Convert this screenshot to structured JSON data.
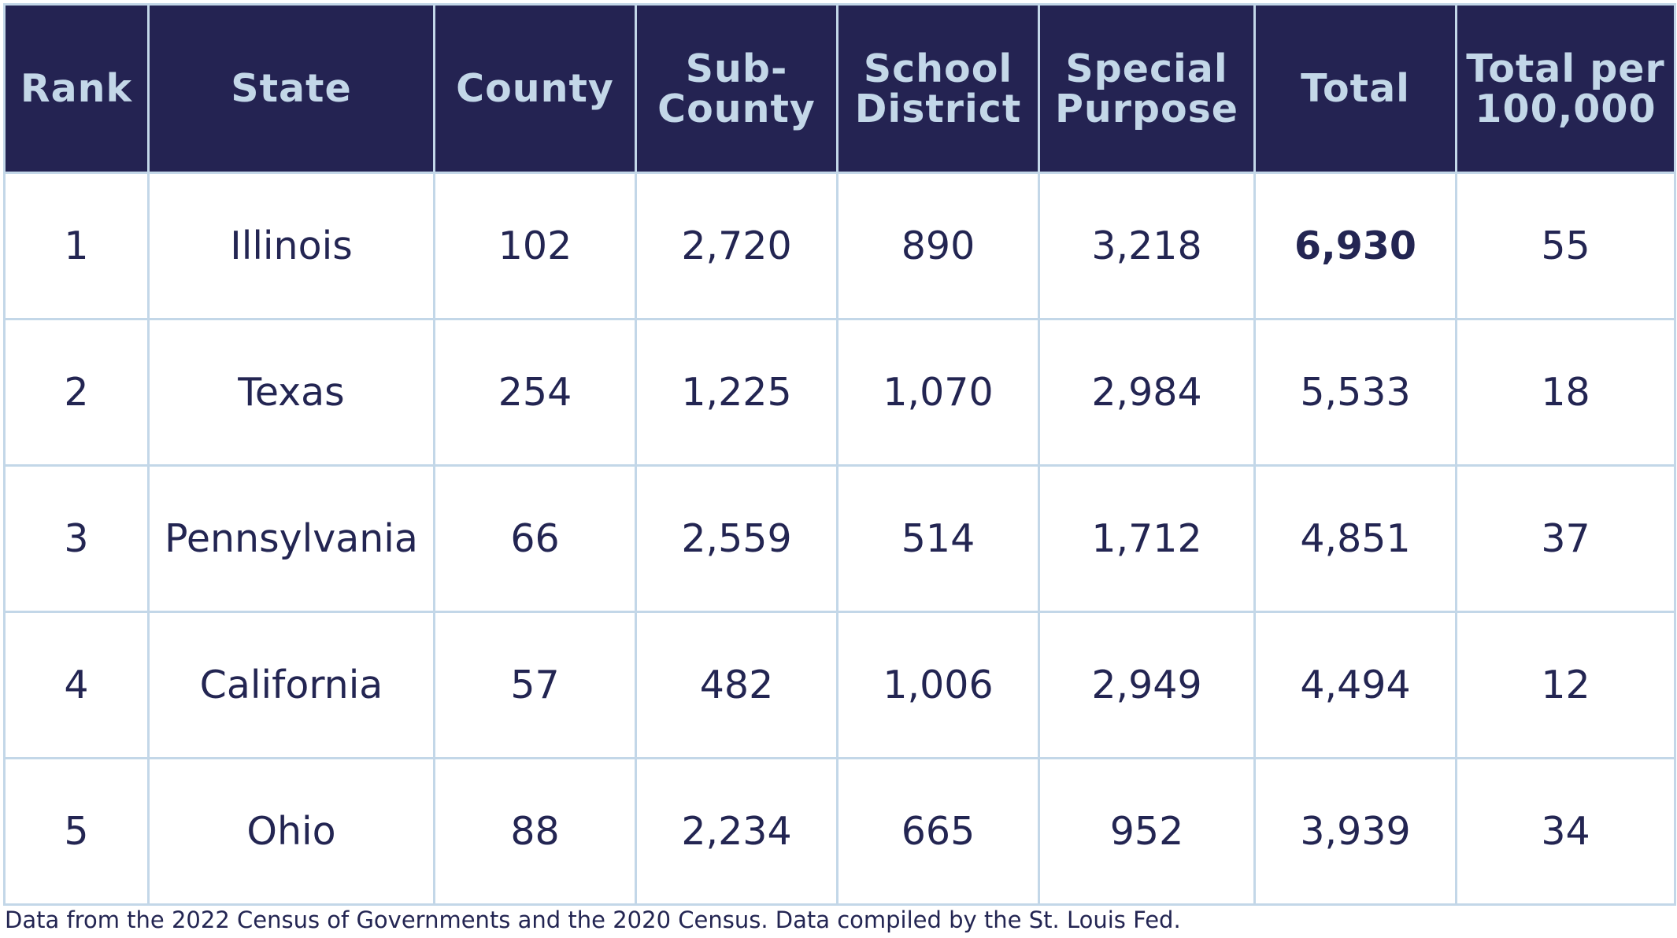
{
  "chart_data": {
    "type": "table",
    "columns": [
      "Rank",
      "State",
      "County",
      "Sub-\nCounty",
      "School\nDistrict",
      "Special\nPurpose",
      "Total",
      "Total per\n100,000"
    ],
    "rows": [
      [
        "1",
        "Illinois",
        "102",
        "2,720",
        "890",
        "3,218",
        "6,930",
        "55"
      ],
      [
        "2",
        "Texas",
        "254",
        "1,225",
        "1,070",
        "2,984",
        "5,533",
        "18"
      ],
      [
        "3",
        "Pennsylvania",
        "66",
        "2,559",
        "514",
        "1,712",
        "4,851",
        "37"
      ],
      [
        "4",
        "California",
        "57",
        "482",
        "1,006",
        "2,949",
        "4,494",
        "12"
      ],
      [
        "5",
        "Ohio",
        "88",
        "2,234",
        "665",
        "952",
        "3,939",
        "34"
      ]
    ],
    "highlighted_cell": {
      "row": 0,
      "column": 6
    },
    "header_background": "#242352",
    "header_text_color": "#c3d7e8",
    "body_text_color": "#232552",
    "border_color": "#c3d7e8"
  },
  "footnote": "Data from the 2022 Census of Governments and the 2020 Census. Data compiled by the St. Louis Fed."
}
